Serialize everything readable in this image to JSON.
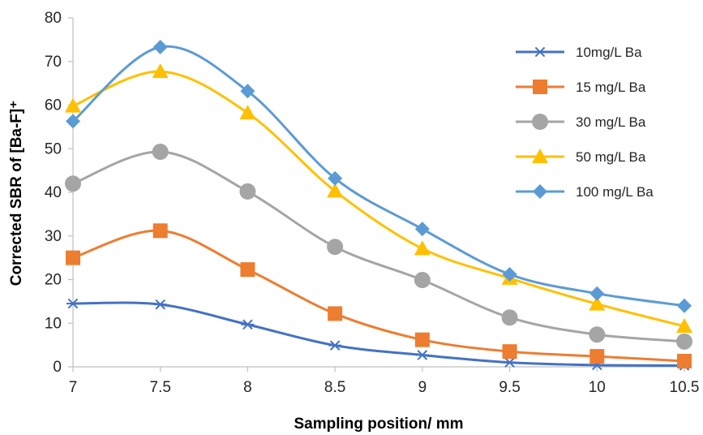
{
  "chart_data": {
    "type": "line",
    "title": "",
    "xlabel": "Sampling position/ mm",
    "ylabel": "Corrected SBR of [Ba-F]⁺",
    "xlim": [
      7,
      10.5
    ],
    "ylim": [
      0,
      80
    ],
    "x_ticks": [
      "7",
      "7.5",
      "8",
      "8.5",
      "9",
      "9.5",
      "10",
      "10.5"
    ],
    "y_ticks": [
      "0",
      "10",
      "20",
      "30",
      "40",
      "50",
      "60",
      "70",
      "80"
    ],
    "grid": false,
    "legend_position": "right",
    "x": [
      7,
      7.5,
      8,
      8.5,
      9,
      9.5,
      10,
      10.5
    ],
    "series": [
      {
        "name": "10mg/L Ba",
        "color": "#4472C4",
        "marker": "asterisk",
        "values": [
          14.5,
          14.3,
          9.7,
          4.9,
          2.7,
          1.0,
          0.4,
          0.3
        ]
      },
      {
        "name": "15 mg/L Ba",
        "color": "#ED7D31",
        "marker": "square",
        "values": [
          25.0,
          31.2,
          22.3,
          12.2,
          6.2,
          3.5,
          2.4,
          1.3
        ]
      },
      {
        "name": "30 mg/L Ba",
        "color": "#A5A5A5",
        "marker": "circle",
        "values": [
          42.0,
          49.3,
          40.2,
          27.5,
          19.9,
          11.3,
          7.4,
          5.8
        ]
      },
      {
        "name": "50 mg/L Ba",
        "color": "#FFC000",
        "marker": "triangle",
        "values": [
          59.8,
          67.7,
          58.2,
          40.3,
          27.1,
          20.3,
          14.4,
          9.3
        ]
      },
      {
        "name": "100 mg/L Ba",
        "color": "#5B9BD5",
        "marker": "diamond",
        "values": [
          56.3,
          73.3,
          63.2,
          43.2,
          31.6,
          21.2,
          16.8,
          14.0
        ]
      }
    ]
  }
}
